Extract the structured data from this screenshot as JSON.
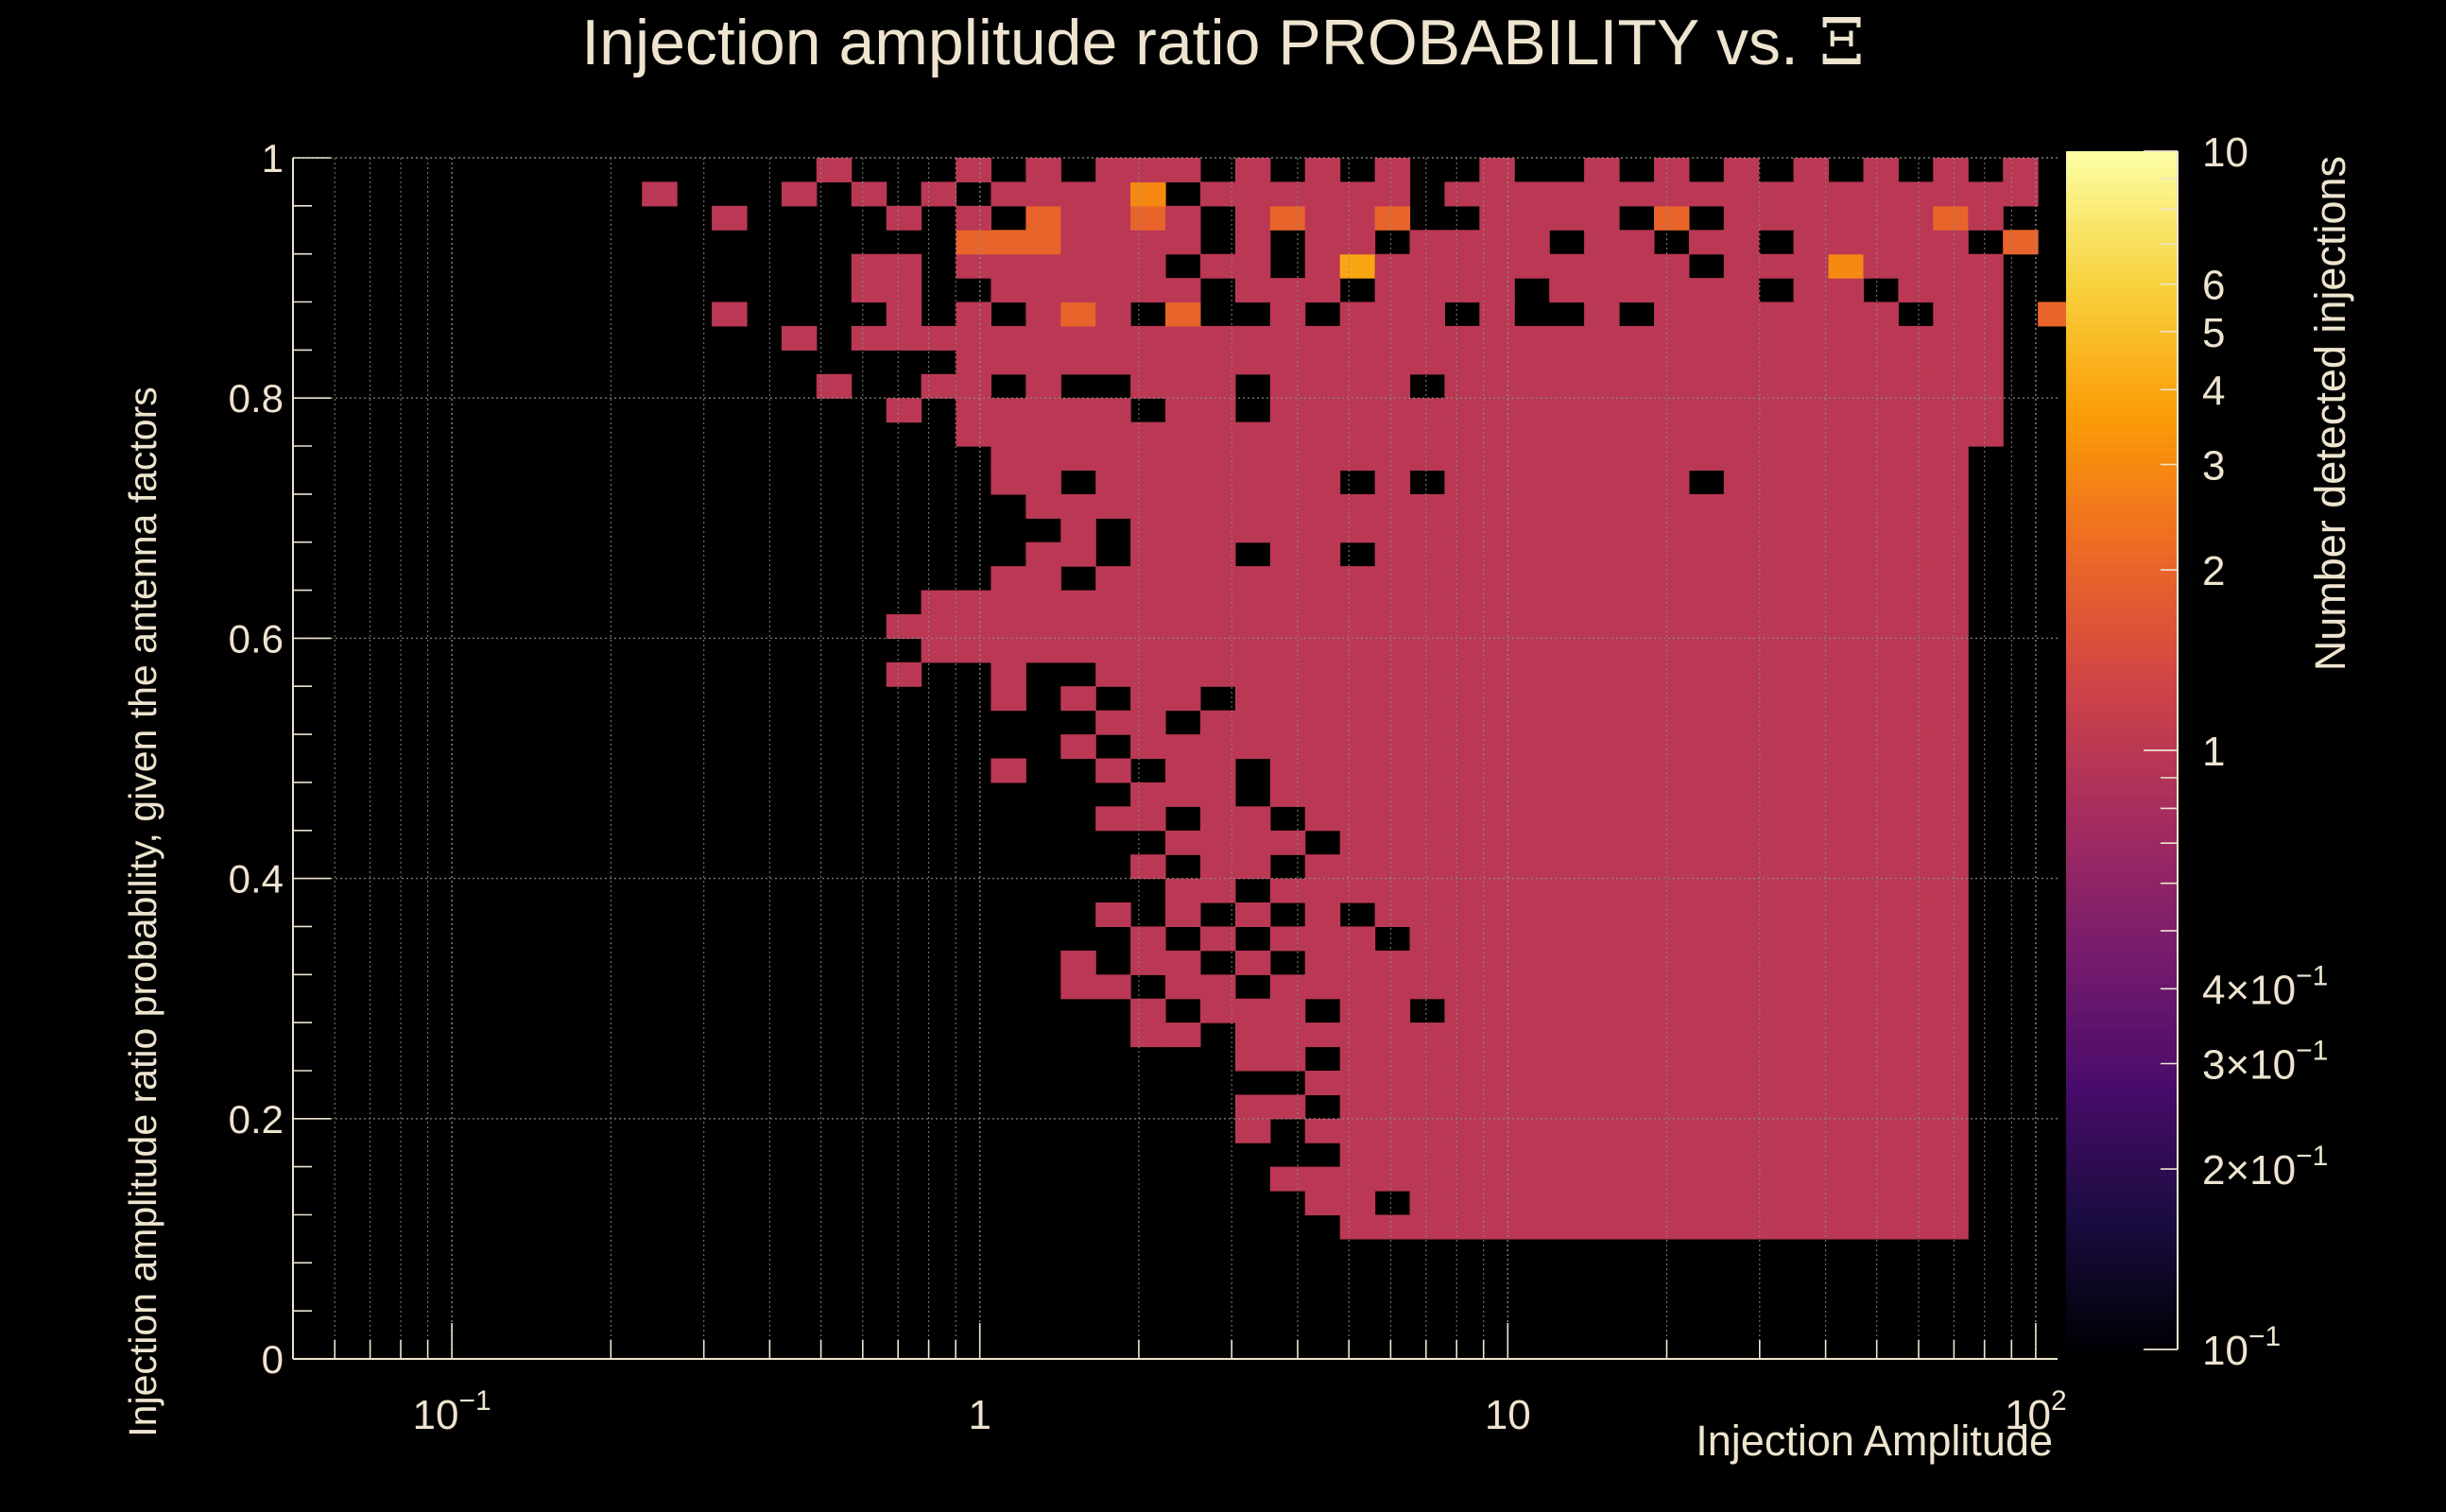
{
  "chart_data": {
    "type": "heatmap",
    "title_prefix": "Injection amplitude ratio PROBABILITY vs.",
    "title_symbol": "Ξ",
    "xlabel": "Injection Amplitude",
    "ylabel": "Injection amplitude ratio probability, given the antenna factors",
    "colorbar_label": "Number detected injections",
    "x_scale": "log",
    "x_range": [
      0.05,
      110
    ],
    "y_range": [
      0,
      1
    ],
    "z_scale": "log",
    "z_range": [
      0.1,
      10
    ],
    "x_bins_log10": {
      "start": -1.30103,
      "width": 0.0661,
      "count": 51
    },
    "y_bins": {
      "start": 0.02,
      "width": 0.02,
      "count": 49
    },
    "x_ticks": [
      {
        "value": 0.1,
        "base": "10",
        "exp": "−1"
      },
      {
        "value": 1,
        "label": "1"
      },
      {
        "value": 10,
        "label": "10"
      },
      {
        "value": 100,
        "base": "10",
        "exp": "2"
      }
    ],
    "y_ticks": [
      {
        "value": 0,
        "label": "0"
      },
      {
        "value": 0.2,
        "label": "0.2"
      },
      {
        "value": 0.4,
        "label": "0.4"
      },
      {
        "value": 0.6,
        "label": "0.6"
      },
      {
        "value": 0.8,
        "label": "0.8"
      },
      {
        "value": 1,
        "label": "1"
      }
    ],
    "z_ticks": [
      {
        "value": 10,
        "label": "10"
      },
      {
        "value": 6,
        "label": "6"
      },
      {
        "value": 5,
        "label": "5"
      },
      {
        "value": 4,
        "label": "4"
      },
      {
        "value": 3,
        "label": "3"
      },
      {
        "value": 2,
        "label": "2"
      },
      {
        "value": 1,
        "label": "1"
      },
      {
        "value": 0.4,
        "mant": "4×10",
        "exp": "−1"
      },
      {
        "value": 0.3,
        "mant": "3×10",
        "exp": "−1"
      },
      {
        "value": 0.2,
        "mant": "2×10",
        "exp": "−1"
      },
      {
        "value": 0.1,
        "mant": "10",
        "exp": "−1"
      }
    ],
    "palette": [
      "#000004",
      "#1B0C41",
      "#4A0C6B",
      "#781C6D",
      "#A52C60",
      "#CF4446",
      "#ED6925",
      "#FB9B06",
      "#F7D13D",
      "#FCFFA4"
    ],
    "colors": {
      "background": "#000000",
      "text": "#EEE4CF",
      "grid": "#8C8C8C"
    },
    "row_cells": {
      "49": [
        "16",
        "20",
        "22",
        "24",
        "25",
        "26",
        "28",
        "30",
        "32",
        "35",
        "38",
        "40",
        "42",
        "44",
        "46",
        "48",
        "50"
      ],
      "48": [
        "11",
        "15",
        "17",
        "19",
        "21",
        "22",
        "23",
        "24",
        "25:3",
        "27",
        "28",
        "29",
        "30",
        "31",
        "32",
        "34",
        "35",
        "36",
        "37",
        "38",
        "39",
        "40",
        "41",
        "42",
        "43",
        "44",
        "45",
        "46",
        "47",
        "48",
        "49",
        "50"
      ],
      "47": [
        "13",
        "18",
        "20",
        "22:2",
        "23",
        "24",
        "25:2",
        "26",
        "28",
        "29:2",
        "30",
        "31",
        "32:2",
        "35",
        "36",
        "37",
        "38",
        "40:2",
        "42",
        "43",
        "44",
        "45",
        "46",
        "47",
        "48:2",
        "49"
      ],
      "46": [
        "20:2",
        "21:2",
        "22:2",
        "23",
        "24",
        "25",
        "26",
        "28",
        "30",
        "31",
        "33",
        "34",
        "35",
        "36",
        "38",
        "39",
        "41",
        "42",
        "44",
        "45",
        "46",
        "47",
        "48",
        "50:2"
      ],
      "45": [
        "17",
        "18",
        "20",
        "21",
        "22",
        "23",
        "24",
        "25",
        "27",
        "28",
        "30",
        "31:4",
        "32",
        "33",
        "34",
        "35",
        "36",
        "37",
        "38",
        "39",
        "40",
        "42",
        "43",
        "44",
        "45:3",
        "46",
        "47",
        "48",
        "49"
      ],
      "44": [
        "17",
        "18",
        "21",
        "22",
        "23",
        "24",
        "25",
        "26",
        "28",
        "29",
        "30",
        "32",
        "33",
        "34",
        "35",
        "37",
        "38",
        "39",
        "40",
        "41",
        "42",
        "44",
        "45",
        "47",
        "48",
        "49"
      ],
      "43": [
        "13",
        "18",
        "20",
        "22",
        "23:2",
        "24",
        "26:2",
        "29",
        "31",
        "32",
        "33",
        "35",
        "38",
        "40",
        "41",
        "42",
        "43",
        "44",
        "45",
        "46",
        "48",
        "49",
        "51:2"
      ],
      "42": [
        "15",
        "17",
        "18",
        "19",
        "20",
        "21",
        "22",
        "23",
        "24",
        "25",
        "26",
        "27",
        "28",
        "29",
        "30",
        "31",
        "32",
        "33",
        "34",
        "35",
        "36",
        "37",
        "38",
        "39",
        "40",
        "41",
        "42",
        "43",
        "44",
        "45",
        "46",
        "47",
        "48",
        "49"
      ],
      "41": [
        "20",
        "21",
        "22",
        "23",
        "24",
        "25",
        "26",
        "27",
        "28",
        "29",
        "30",
        "31",
        "32",
        "33",
        "34",
        "35",
        "36",
        "37",
        "38",
        "39",
        "40",
        "41",
        "42",
        "43",
        "44",
        "45",
        "46",
        "47",
        "48",
        "49"
      ],
      "40": [
        "16",
        "19",
        "20",
        "22",
        "25",
        "26",
        "27",
        "29",
        "30",
        "31",
        "32",
        "34",
        "35",
        "36",
        "37",
        "38",
        "39",
        "40",
        "41",
        "42",
        "43",
        "44",
        "45",
        "46",
        "47",
        "48",
        "49"
      ],
      "39": [
        "18",
        "20",
        "21",
        "22",
        "23",
        "24",
        "26",
        "27",
        "29",
        "30",
        "31",
        "32",
        "33",
        "34",
        "35",
        "36",
        "37",
        "38",
        "39",
        "40",
        "41",
        "42",
        "43",
        "44",
        "45",
        "46",
        "47",
        "48",
        "49"
      ],
      "38": [
        "20",
        "21",
        "22",
        "23",
        "24",
        "25",
        "26",
        "27",
        "28",
        "29",
        "30",
        "31",
        "32",
        "33",
        "34",
        "35",
        "36",
        "37",
        "38",
        "39",
        "40",
        "41",
        "42",
        "43",
        "44",
        "45",
        "46",
        "47",
        "48",
        "49"
      ],
      "37": [
        "21",
        "22",
        "23",
        "24",
        "25",
        "26",
        "27",
        "28",
        "29",
        "30",
        "31",
        "32",
        "33",
        "34",
        "35",
        "36",
        "37",
        "38",
        "39",
        "40",
        "41",
        "42",
        "43",
        "44",
        "45",
        "46",
        "47",
        "48"
      ],
      "36": [
        "21",
        "22",
        "24",
        "25",
        "26",
        "27",
        "28",
        "29",
        "30",
        "32",
        "34",
        "35",
        "36",
        "37",
        "38",
        "39",
        "40",
        "42",
        "43",
        "44",
        "45",
        "46",
        "47",
        "48"
      ],
      "35": [
        "22",
        "23",
        "24",
        "25",
        "26",
        "27",
        "28",
        "29",
        "30",
        "31",
        "32",
        "33",
        "34",
        "35",
        "36",
        "37",
        "38",
        "39",
        "40",
        "41",
        "42",
        "43",
        "44",
        "45",
        "46",
        "47",
        "48"
      ],
      "34": [
        "23",
        "25",
        "26",
        "27",
        "28",
        "29",
        "30",
        "31",
        "32",
        "33",
        "34",
        "35",
        "36",
        "37",
        "38",
        "39",
        "40",
        "41",
        "42",
        "43",
        "44",
        "45",
        "46",
        "47",
        "48"
      ],
      "33": [
        "22",
        "23",
        "25",
        "26",
        "27",
        "29",
        "30",
        "32",
        "33",
        "34",
        "35",
        "36",
        "37",
        "38",
        "39",
        "40",
        "41",
        "42",
        "43",
        "44",
        "45",
        "46",
        "47",
        "48"
      ],
      "32": [
        "21",
        "22",
        "24",
        "25",
        "26",
        "27",
        "28",
        "29",
        "30",
        "31",
        "32",
        "33",
        "34",
        "35",
        "36",
        "37",
        "38",
        "39",
        "40",
        "41",
        "42",
        "43",
        "44",
        "45",
        "46",
        "47",
        "48"
      ],
      "31": [
        "19",
        "20",
        "21",
        "22",
        "23",
        "24",
        "25",
        "26",
        "27",
        "28",
        "29",
        "30",
        "31",
        "32",
        "33",
        "34",
        "35",
        "36",
        "37",
        "38",
        "39",
        "40",
        "41",
        "42",
        "43",
        "44",
        "45",
        "46",
        "47",
        "48"
      ],
      "30": [
        "18",
        "19",
        "20",
        "21",
        "22",
        "23",
        "24",
        "25",
        "26",
        "27",
        "28",
        "29",
        "30",
        "31",
        "32",
        "33",
        "34",
        "35",
        "36",
        "37",
        "38",
        "39",
        "40",
        "41",
        "42",
        "43",
        "44",
        "45",
        "46",
        "47",
        "48"
      ],
      "29": [
        "19",
        "20",
        "21",
        "22",
        "23",
        "24",
        "25",
        "26",
        "27",
        "28",
        "29",
        "30",
        "31",
        "32",
        "33",
        "34",
        "35",
        "36",
        "37",
        "38",
        "39",
        "40",
        "41",
        "42",
        "43",
        "44",
        "45",
        "46",
        "47",
        "48"
      ],
      "28": [
        "18",
        "21",
        "24",
        "25",
        "26",
        "27",
        "28",
        "29",
        "30",
        "31",
        "32",
        "33",
        "34",
        "35",
        "36",
        "37",
        "38",
        "39",
        "40",
        "41",
        "42",
        "43",
        "44",
        "45",
        "46",
        "47",
        "48"
      ],
      "27": [
        "21",
        "23",
        "25",
        "26",
        "28",
        "29",
        "30",
        "31",
        "32",
        "33",
        "34",
        "35",
        "36",
        "37",
        "38",
        "39",
        "40",
        "41",
        "42",
        "43",
        "44",
        "45",
        "46",
        "47",
        "48"
      ],
      "26": [
        "24",
        "25",
        "27",
        "28",
        "29",
        "30",
        "31",
        "32",
        "33",
        "34",
        "35",
        "36",
        "37",
        "38",
        "39",
        "40",
        "41",
        "42",
        "43",
        "44",
        "45",
        "46",
        "47",
        "48"
      ],
      "25": [
        "23",
        "25",
        "26",
        "27",
        "28",
        "29",
        "30",
        "31",
        "32",
        "33",
        "34",
        "35",
        "36",
        "37",
        "38",
        "39",
        "40",
        "41",
        "42",
        "43",
        "44",
        "45",
        "46",
        "47",
        "48"
      ],
      "24": [
        "21",
        "24",
        "26",
        "27",
        "29",
        "30",
        "31",
        "32",
        "33",
        "34",
        "35",
        "36",
        "37",
        "38",
        "39",
        "40",
        "41",
        "42",
        "43",
        "44",
        "45",
        "46",
        "47",
        "48"
      ],
      "23": [
        "25",
        "26",
        "27",
        "29",
        "30",
        "31",
        "32",
        "33",
        "34",
        "35",
        "36",
        "37",
        "38",
        "39",
        "40",
        "41",
        "42",
        "43",
        "44",
        "45",
        "46",
        "47",
        "48"
      ],
      "22": [
        "24",
        "25",
        "27",
        "28",
        "30",
        "31",
        "32",
        "33",
        "34",
        "35",
        "36",
        "37",
        "38",
        "39",
        "40",
        "41",
        "42",
        "43",
        "44",
        "45",
        "46",
        "47",
        "48"
      ],
      "21": [
        "26",
        "27",
        "28",
        "29",
        "31",
        "32",
        "33",
        "34",
        "35",
        "36",
        "37",
        "38",
        "39",
        "40",
        "41",
        "42",
        "43",
        "44",
        "45",
        "46",
        "47",
        "48"
      ],
      "20": [
        "25",
        "27",
        "28",
        "30",
        "31",
        "32",
        "33",
        "34",
        "35",
        "36",
        "37",
        "38",
        "39",
        "40",
        "41",
        "42",
        "43",
        "44",
        "45",
        "46",
        "47",
        "48"
      ],
      "19": [
        "26",
        "27",
        "29",
        "30",
        "31",
        "32",
        "33",
        "34",
        "35",
        "36",
        "37",
        "38",
        "39",
        "40",
        "41",
        "42",
        "43",
        "44",
        "45",
        "46",
        "47",
        "48"
      ],
      "18": [
        "24",
        "26",
        "28",
        "30",
        "32",
        "33",
        "34",
        "35",
        "36",
        "37",
        "38",
        "39",
        "40",
        "41",
        "42",
        "43",
        "44",
        "45",
        "46",
        "47",
        "48"
      ],
      "17": [
        "25",
        "27",
        "29",
        "30",
        "31",
        "33",
        "34",
        "35",
        "36",
        "37",
        "38",
        "39",
        "40",
        "41",
        "42",
        "43",
        "44",
        "45",
        "46",
        "47",
        "48"
      ],
      "16": [
        "23",
        "25",
        "26",
        "28",
        "30",
        "31",
        "32",
        "33",
        "34",
        "35",
        "36",
        "37",
        "38",
        "39",
        "40",
        "41",
        "42",
        "43",
        "44",
        "45",
        "46",
        "47",
        "48"
      ],
      "15": [
        "23",
        "24",
        "26",
        "27",
        "29",
        "30",
        "31",
        "32",
        "33",
        "34",
        "35",
        "36",
        "37",
        "38",
        "39",
        "40",
        "41",
        "42",
        "43",
        "44",
        "45",
        "46",
        "47",
        "48"
      ],
      "14": [
        "25",
        "27",
        "28",
        "29",
        "31",
        "32",
        "34",
        "35",
        "36",
        "37",
        "38",
        "39",
        "40",
        "41",
        "42",
        "43",
        "44",
        "45",
        "46",
        "47",
        "48"
      ],
      "13": [
        "25",
        "26",
        "28",
        "29",
        "30",
        "31",
        "32",
        "33",
        "34",
        "35",
        "36",
        "37",
        "38",
        "39",
        "40",
        "41",
        "42",
        "43",
        "44",
        "45",
        "46",
        "47",
        "48"
      ],
      "12": [
        "28",
        "29",
        "31",
        "32",
        "33",
        "34",
        "35",
        "36",
        "37",
        "38",
        "39",
        "40",
        "41",
        "42",
        "43",
        "44",
        "45",
        "46",
        "47",
        "48"
      ],
      "11": [
        "30",
        "31",
        "32",
        "33",
        "34",
        "35",
        "36",
        "37",
        "38",
        "39",
        "40",
        "41",
        "42",
        "43",
        "44",
        "45",
        "46",
        "47",
        "48"
      ],
      "10": [
        "28",
        "29",
        "31",
        "32",
        "33",
        "34",
        "35",
        "36",
        "37",
        "38",
        "39",
        "40",
        "41",
        "42",
        "43",
        "44",
        "45",
        "46",
        "47",
        "48"
      ],
      "9": [
        "28",
        "30",
        "31",
        "32",
        "33",
        "34",
        "35",
        "36",
        "37",
        "38",
        "39",
        "40",
        "41",
        "42",
        "43",
        "44",
        "45",
        "46",
        "47",
        "48"
      ],
      "8": [
        "31",
        "32",
        "33",
        "34",
        "35",
        "36",
        "37",
        "38",
        "39",
        "40",
        "41",
        "42",
        "43",
        "44",
        "45",
        "46",
        "47",
        "48"
      ],
      "7": [
        "29",
        "30",
        "31",
        "32",
        "33",
        "34",
        "35",
        "36",
        "37",
        "38",
        "39",
        "40",
        "41",
        "42",
        "43",
        "44",
        "45",
        "46",
        "47",
        "48"
      ],
      "6": [
        "30",
        "31",
        "33",
        "34",
        "35",
        "36",
        "37",
        "38",
        "39",
        "40",
        "41",
        "42",
        "43",
        "44",
        "45",
        "46",
        "47",
        "48"
      ],
      "5": [
        "31",
        "32",
        "33",
        "34",
        "35",
        "36",
        "37",
        "38",
        "39",
        "40",
        "41",
        "42",
        "43",
        "44",
        "45",
        "46",
        "47",
        "48"
      ]
    }
  }
}
